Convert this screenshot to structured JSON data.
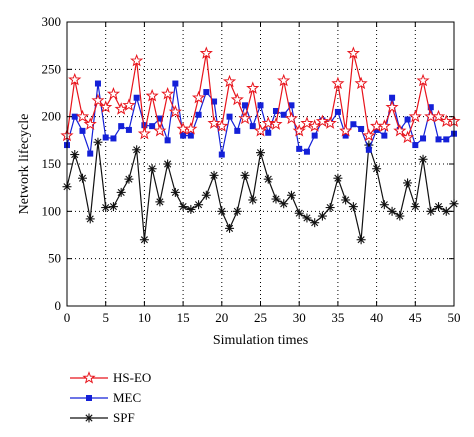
{
  "chart_data": {
    "type": "line",
    "xlabel": "Simulation times",
    "ylabel": "Network lifecycle",
    "xlim": [
      0,
      50
    ],
    "ylim": [
      0,
      300
    ],
    "xticks": [
      0,
      5,
      10,
      15,
      20,
      25,
      30,
      35,
      40,
      45,
      50
    ],
    "yticks": [
      0,
      50,
      100,
      150,
      200,
      250,
      300
    ],
    "grid": "dotted",
    "legend_position": "below",
    "x": [
      0,
      1,
      2,
      3,
      4,
      5,
      6,
      7,
      8,
      9,
      10,
      11,
      12,
      13,
      14,
      15,
      16,
      17,
      18,
      19,
      20,
      21,
      22,
      23,
      24,
      25,
      26,
      27,
      28,
      29,
      30,
      31,
      32,
      33,
      34,
      35,
      36,
      37,
      38,
      39,
      40,
      41,
      42,
      43,
      44,
      45,
      46,
      47,
      48,
      49,
      50
    ],
    "series": [
      {
        "name": "HS-EO",
        "color": "#e8141c",
        "marker": "star",
        "values": [
          180,
          239,
          200,
          192,
          217,
          210,
          224,
          208,
          212,
          259,
          182,
          222,
          185,
          224,
          205,
          187,
          187,
          220,
          267,
          193,
          190,
          237,
          218,
          198,
          230,
          185,
          193,
          192,
          238,
          198,
          185,
          193,
          190,
          195,
          193,
          235,
          185,
          267,
          235,
          180,
          190,
          190,
          210,
          185,
          178,
          200,
          238,
          200,
          200,
          195,
          195
        ]
      },
      {
        "name": "MEC",
        "color": "#1420d8",
        "marker": "square",
        "values": [
          170,
          200,
          185,
          161,
          235,
          178,
          177,
          190,
          186,
          220,
          191,
          190,
          198,
          175,
          235,
          180,
          180,
          202,
          226,
          216,
          160,
          200,
          185,
          212,
          190,
          212,
          183,
          206,
          202,
          212,
          166,
          163,
          180,
          196,
          193,
          205,
          180,
          192,
          187,
          165,
          186,
          180,
          220,
          186,
          197,
          170,
          177,
          210,
          176,
          176,
          182
        ]
      },
      {
        "name": "SPF",
        "color": "#111111",
        "marker": "asterisk",
        "values": [
          126,
          160,
          135,
          92,
          173,
          104,
          105,
          120,
          134,
          165,
          70,
          145,
          110,
          150,
          120,
          105,
          102,
          107,
          117,
          138,
          100,
          82,
          100,
          138,
          112,
          162,
          134,
          113,
          108,
          117,
          98,
          93,
          88,
          95,
          104,
          135,
          112,
          105,
          70,
          170,
          145,
          107,
          100,
          95,
          130,
          105,
          155,
          100,
          105,
          100,
          108
        ]
      }
    ]
  }
}
